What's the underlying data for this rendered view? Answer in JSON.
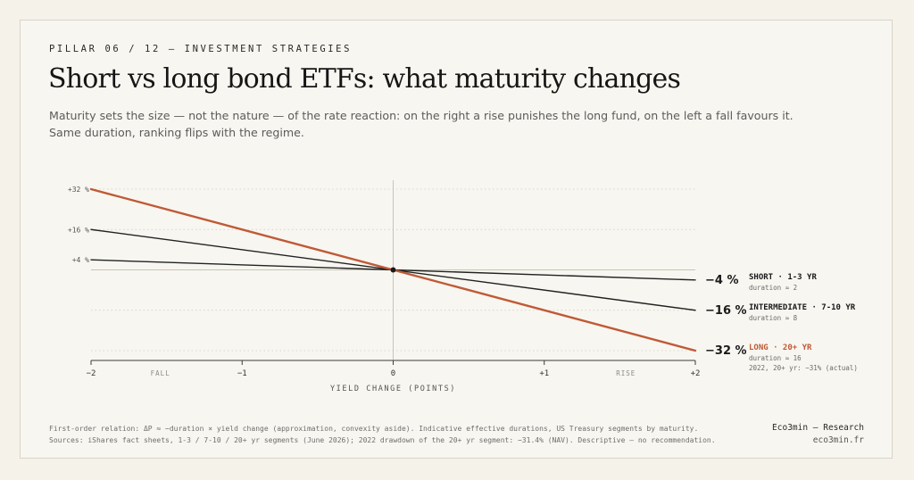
{
  "header": {
    "eyebrow": "PILLAR 06 / 12 — INVESTMENT STRATEGIES",
    "title": "Short vs long bond ETFs: what maturity changes",
    "subtitle": "Maturity sets the size — not the nature — of the rate reaction: on the right a rise punishes the long fund, on the left a fall favours it. Same duration, ranking flips with the regime."
  },
  "colors": {
    "long": "#bf5a36",
    "dark": "#222222",
    "grid": "#cfcac0"
  },
  "chart_data": {
    "type": "line",
    "x_axis": {
      "label": "YIELD CHANGE (POINTS)",
      "range": [
        -2,
        2
      ],
      "ticks": [
        {
          "value": -2,
          "label": "−2"
        },
        {
          "value": -1,
          "label": "−1"
        },
        {
          "value": 0,
          "label": "0"
        },
        {
          "value": 1,
          "label": "+1"
        },
        {
          "value": 2,
          "label": "+2"
        }
      ],
      "annotations": [
        {
          "x": -1.6,
          "label": "FALL"
        },
        {
          "x": 1.6,
          "label": "RISE"
        }
      ]
    },
    "y_axis": {
      "range": [
        -32,
        32
      ],
      "ticks": [
        {
          "value": 32,
          "label": "+32 %"
        },
        {
          "value": 16,
          "label": "+16 %"
        },
        {
          "value": 4,
          "label": "+4 %"
        }
      ]
    },
    "origin_dot": {
      "x": 0,
      "y": 0
    },
    "series": [
      {
        "key": "short",
        "name": "SHORT · 1-3 YR",
        "duration_note": "duration ≈ 2",
        "end_label": "−4 %",
        "x": [
          -2,
          2
        ],
        "y": [
          4,
          -4
        ]
      },
      {
        "key": "intermediate",
        "name": "INTERMEDIATE · 7-10 YR",
        "duration_note": "duration ≈ 8",
        "end_label": "−16 %",
        "x": [
          -2,
          2
        ],
        "y": [
          16,
          -16
        ]
      },
      {
        "key": "long",
        "name": "LONG · 20+ YR",
        "duration_note": "duration ≈ 16",
        "extra_note": "2022, 20+ yr: −31% (actual)",
        "end_label": "−32 %",
        "x": [
          -2,
          2
        ],
        "y": [
          32,
          -32
        ]
      }
    ]
  },
  "footer": {
    "line1": "First-order relation: ΔP ≈ −duration × yield change (approximation, convexity aside). Indicative effective durations, US Treasury segments by maturity.",
    "line2": "Sources: iShares fact sheets, 1-3 / 7-10 / 20+ yr segments (June 2026); 2022 drawdown of the 20+ yr segment: −31.4% (NAV). Descriptive — no recommendation."
  },
  "brand": {
    "name": "Eco3min — Research",
    "url": "eco3min.fr"
  }
}
